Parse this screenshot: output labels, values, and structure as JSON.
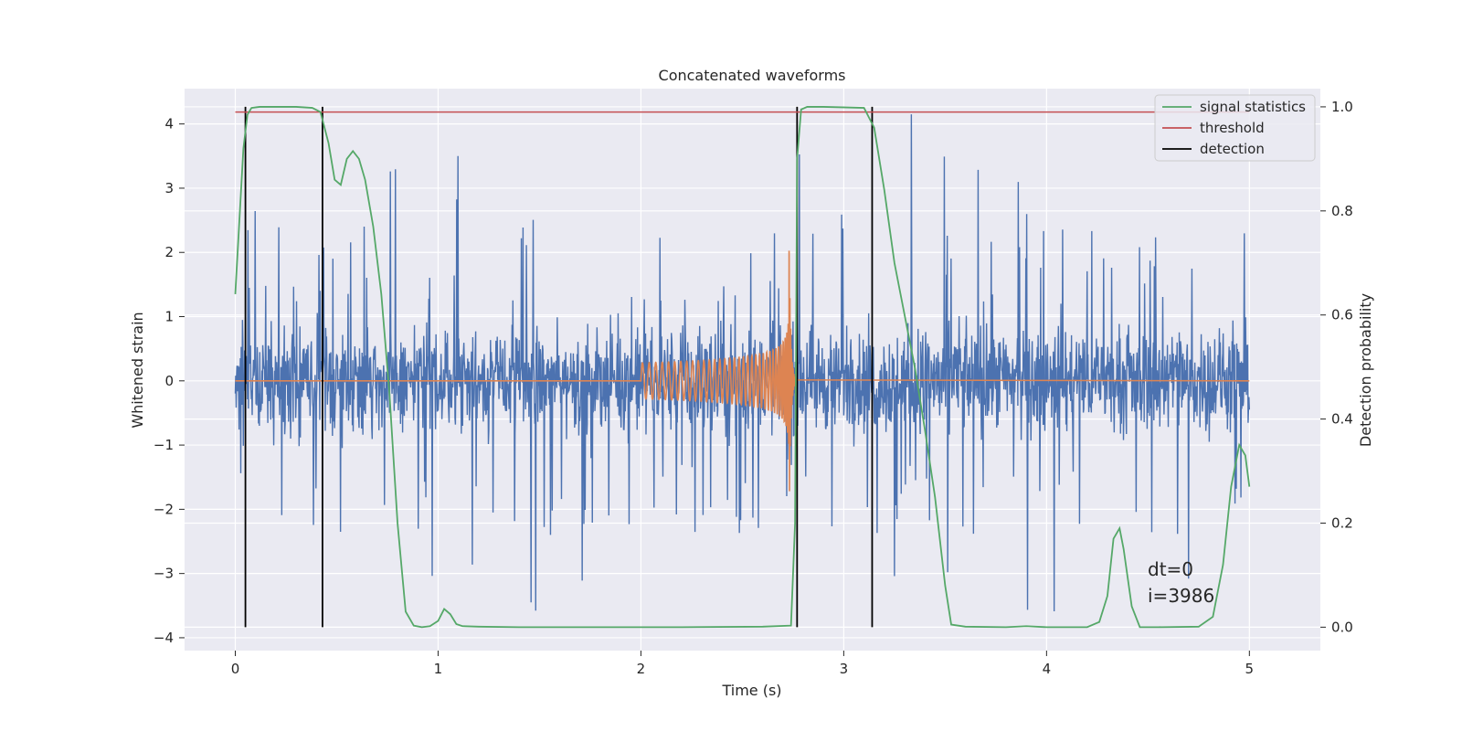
{
  "chart_data": {
    "type": "line",
    "title": "Concatenated waveforms",
    "xlabel": "Time (s)",
    "ylabel": "Whitened strain",
    "y2label": "Detection probability",
    "xlim": [
      -0.25,
      5.35
    ],
    "ylim": [
      -4.2,
      4.55
    ],
    "y2lim": [
      -0.045,
      1.035
    ],
    "xticks": [
      0,
      1,
      2,
      3,
      4,
      5
    ],
    "yticks": [
      -4,
      -3,
      -2,
      -1,
      0,
      1,
      2,
      3,
      4
    ],
    "y2ticks": [
      0.0,
      0.2,
      0.4,
      0.6,
      0.8,
      1.0
    ],
    "grid": true,
    "legend_position": "top-right",
    "legend": [
      "signal statistics",
      "threshold",
      "detection"
    ],
    "annotations": [
      "dt=0",
      "i=3986"
    ],
    "colors": {
      "strain": "#4c72b0",
      "template": "#dd8452",
      "signal_statistics": "#55a868",
      "threshold": "#c44e52",
      "detection": "#000000",
      "background": "#eaeaf2",
      "grid": "#ffffff"
    },
    "series": [
      {
        "name": "signal statistics",
        "axis": "right",
        "x": [
          0.0,
          0.02,
          0.04,
          0.06,
          0.08,
          0.12,
          0.2,
          0.3,
          0.38,
          0.42,
          0.46,
          0.49,
          0.52,
          0.55,
          0.58,
          0.61,
          0.64,
          0.68,
          0.72,
          0.76,
          0.8,
          0.84,
          0.88,
          0.92,
          0.96,
          1.0,
          1.03,
          1.06,
          1.09,
          1.12,
          1.2,
          1.4,
          1.8,
          2.2,
          2.6,
          2.74,
          2.76,
          2.77,
          2.79,
          2.82,
          2.9,
          3.1,
          3.15,
          3.2,
          3.25,
          3.3,
          3.35,
          3.4,
          3.45,
          3.5,
          3.53,
          3.6,
          3.8,
          3.9,
          4.0,
          4.2,
          4.26,
          4.3,
          4.33,
          4.36,
          4.38,
          4.42,
          4.46,
          4.55,
          4.75,
          4.82,
          4.87,
          4.91,
          4.95,
          4.98,
          5.0
        ],
        "values": [
          0.64,
          0.78,
          0.92,
          0.985,
          0.998,
          1.0,
          1.0,
          1.0,
          0.998,
          0.99,
          0.93,
          0.86,
          0.85,
          0.9,
          0.915,
          0.9,
          0.86,
          0.77,
          0.64,
          0.45,
          0.2,
          0.03,
          0.003,
          0.0,
          0.002,
          0.012,
          0.035,
          0.025,
          0.006,
          0.002,
          0.001,
          0.0,
          0.0,
          0.0,
          0.001,
          0.003,
          0.2,
          0.9,
          0.995,
          1.0,
          1.0,
          0.998,
          0.96,
          0.84,
          0.7,
          0.6,
          0.5,
          0.38,
          0.25,
          0.08,
          0.005,
          0.001,
          0.0,
          0.002,
          0.0,
          0.0,
          0.01,
          0.06,
          0.17,
          0.19,
          0.15,
          0.04,
          0.0,
          0.0,
          0.001,
          0.02,
          0.12,
          0.27,
          0.35,
          0.33,
          0.27
        ]
      },
      {
        "name": "threshold",
        "axis": "right",
        "x": [
          0.0,
          5.0
        ],
        "values": [
          0.99,
          0.99
        ]
      }
    ],
    "detections": [
      0.05,
      0.43,
      2.77,
      3.14
    ],
    "template": {
      "start": 2.0,
      "merger": 2.73,
      "end": 2.77,
      "peak_amplitude": 2.4
    },
    "strain_noise": {
      "x_range": [
        0.0,
        5.0
      ],
      "typical_amplitude": 0.6,
      "max_spike": 4.15,
      "min_spike": -3.45
    }
  }
}
